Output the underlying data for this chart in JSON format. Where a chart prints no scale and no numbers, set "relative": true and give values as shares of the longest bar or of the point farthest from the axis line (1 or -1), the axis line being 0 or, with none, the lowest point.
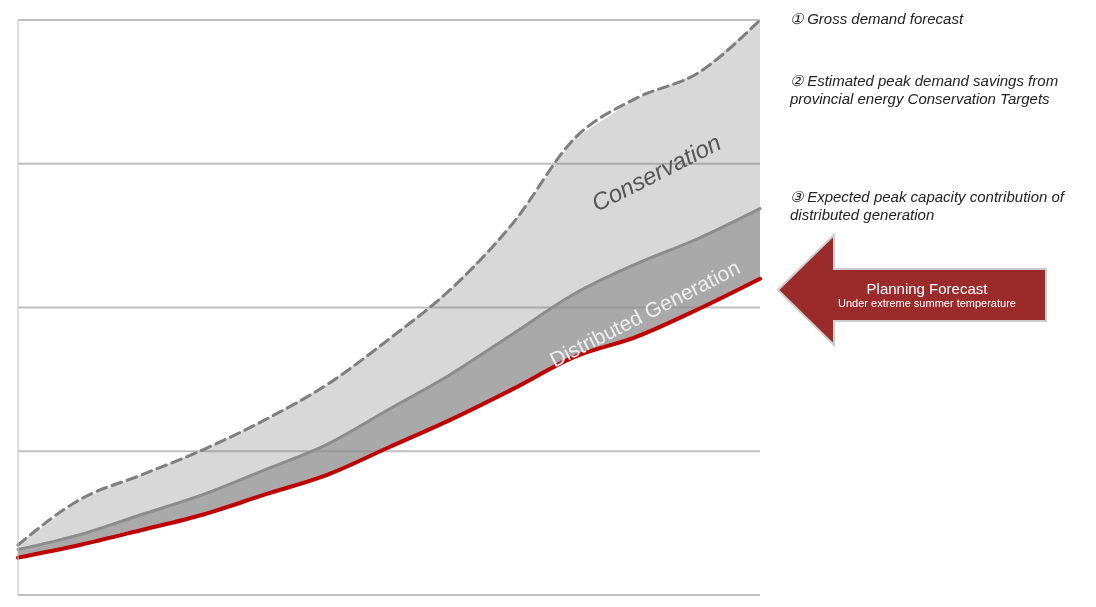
{
  "chart_data": {
    "type": "line",
    "relative": true,
    "grid": "y",
    "categories": [
      null,
      null,
      null,
      null,
      null,
      null,
      null,
      null,
      null,
      null,
      null,
      null,
      null
    ],
    "series": [
      {
        "type": "area",
        "color": "#7f7f7f",
        "line_style": "dashed",
        "values": [
          0.087,
          0.166,
          0.209,
          0.253,
          0.305,
          0.366,
          0.445,
          0.532,
          0.646,
          0.794,
          0.864,
          0.908,
          1
        ]
      },
      {
        "type": "area",
        "color": "#8c8c8c",
        "line_style": "solid",
        "values": [
          0.079,
          0.105,
          0.14,
          0.175,
          0.218,
          0.262,
          0.323,
          0.384,
          0.454,
          0.524,
          0.576,
          0.62,
          0.672
        ]
      },
      {
        "type": "line",
        "color": "#c00000",
        "line_style": "solid",
        "values": [
          0.065,
          0.087,
          0.113,
          0.14,
          0.175,
          0.209,
          0.257,
          0.305,
          0.358,
          0.414,
          0.449,
          0.497,
          0.55
        ]
      }
    ],
    "annotations": [
      "Conservation",
      "Distributed Generation",
      "① Gross demand forecast",
      "② Estimated peak demand savings from provincial energy Conservation Targets",
      "③ Expected peak capacity contribution of distributed generation",
      "Planning Forecast",
      "Under extreme summer temperature"
    ]
  }
}
